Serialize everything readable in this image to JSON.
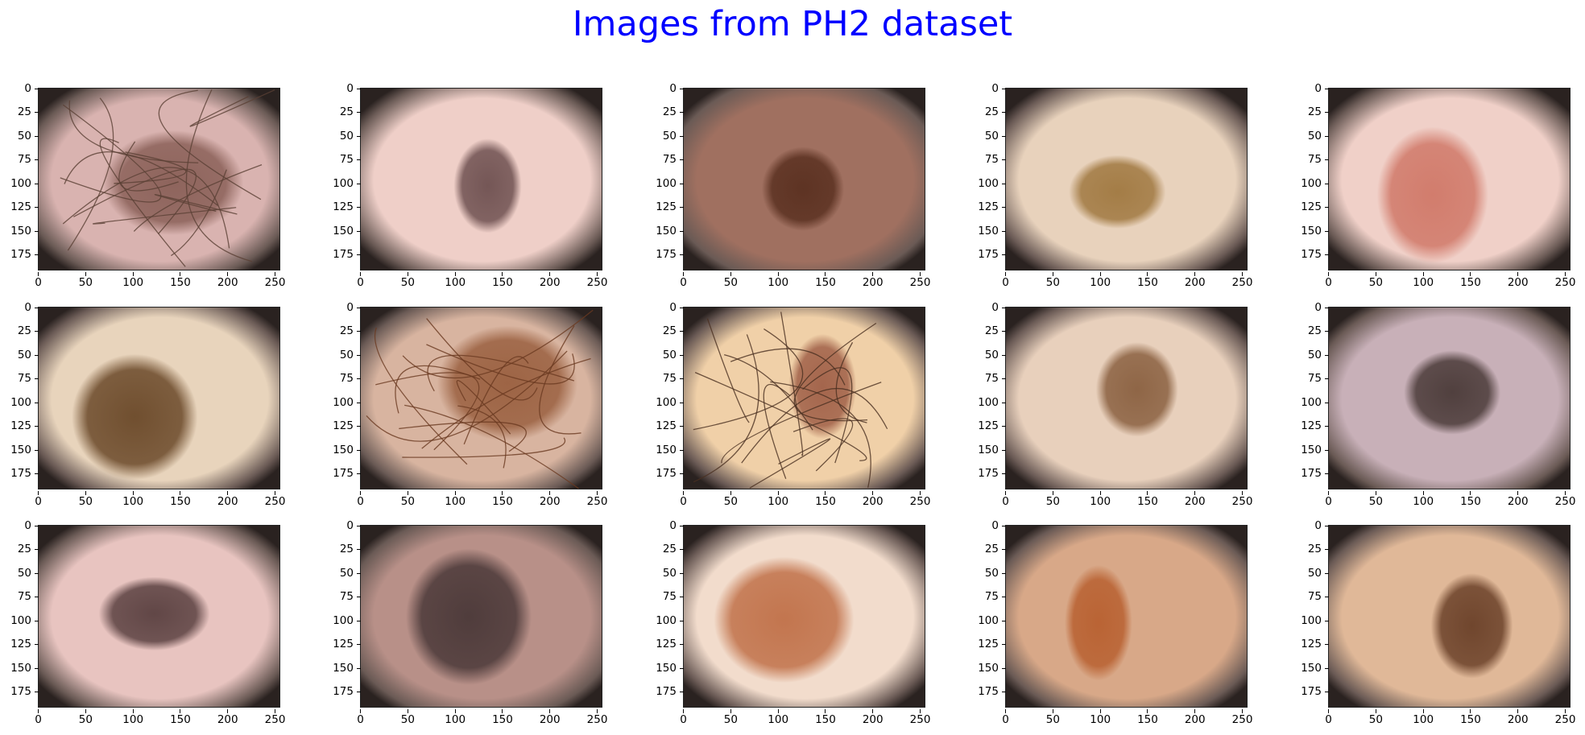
{
  "figure": {
    "title": "Images from PH2 dataset",
    "title_color": "#0000ff"
  },
  "axes": {
    "x_ticks": [
      "0",
      "50",
      "100",
      "150",
      "200",
      "250"
    ],
    "y_ticks": [
      "0",
      "25",
      "50",
      "75",
      "100",
      "125",
      "150",
      "175"
    ],
    "x_range": [
      0,
      256
    ],
    "y_range": [
      0,
      192
    ]
  },
  "panels": [
    {
      "id": "r1c1",
      "skin": "#d9b3b0",
      "lesion": "#8a6058",
      "hair": true,
      "hair_color": "#5a4035"
    },
    {
      "id": "r1c2",
      "skin": "#efcfc8",
      "lesion": "#6e5050",
      "hair": false
    },
    {
      "id": "r1c3",
      "skin": "#a07060",
      "lesion": "#5a3020",
      "hair": false
    },
    {
      "id": "r1c4",
      "skin": "#e8d2bc",
      "lesion": "#a07840",
      "hair": false
    },
    {
      "id": "r1c5",
      "skin": "#f0d0c8",
      "lesion": "#d07868",
      "hair": false
    },
    {
      "id": "r2c1",
      "skin": "#e8d4bc",
      "lesion": "#6a4828",
      "hair": false
    },
    {
      "id": "r2c2",
      "skin": "#d8b4a0",
      "lesion": "#9a6040",
      "hair": true,
      "hair_color": "#6a3a20"
    },
    {
      "id": "r2c3",
      "skin": "#f0d0a8",
      "lesion": "#a06048",
      "hair": true,
      "hair_color": "#4a3020"
    },
    {
      "id": "r2c4",
      "skin": "#e8d0bc",
      "lesion": "#8a6040",
      "hair": false
    },
    {
      "id": "r2c5",
      "skin": "#c8b0b8",
      "lesion": "#4a3a38",
      "hair": false
    },
    {
      "id": "r3c1",
      "skin": "#e8c4c0",
      "lesion": "#5a4040",
      "hair": false
    },
    {
      "id": "r3c2",
      "skin": "#b89088",
      "lesion": "#4a3838",
      "hair": false
    },
    {
      "id": "r3c3",
      "skin": "#f2dccc",
      "lesion": "#c07048",
      "hair": false
    },
    {
      "id": "r3c4",
      "skin": "#d8a888",
      "lesion": "#b86030",
      "hair": false
    },
    {
      "id": "r3c5",
      "skin": "#e0b898",
      "lesion": "#6a4028",
      "hair": false
    }
  ]
}
